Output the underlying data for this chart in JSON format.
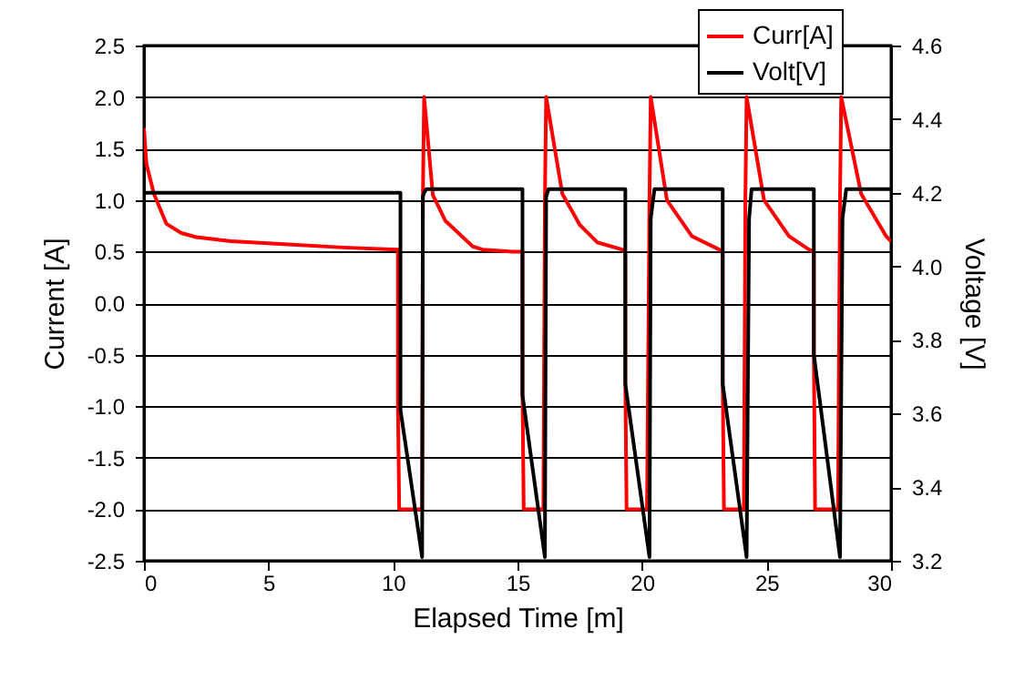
{
  "chart_data": {
    "type": "line",
    "xlabel": "Elapsed Time [m]",
    "ylabel": "Current [A]",
    "y2label": "Voltage [V]",
    "xlim": [
      0,
      30
    ],
    "xticks": [
      0,
      5,
      10,
      15,
      20,
      25,
      30
    ],
    "ylim": [
      -2.5,
      2.5
    ],
    "yticks": [
      {
        "value": -2.5,
        "label": "-2.5"
      },
      {
        "value": -2,
        "label": "-2.0"
      },
      {
        "value": -1.5,
        "label": "-1.5"
      },
      {
        "value": -1,
        "label": "-1.0"
      },
      {
        "value": -0.5,
        "label": "-0.5"
      },
      {
        "value": 0,
        "label": "0.0"
      },
      {
        "value": 0.5,
        "label": "0.5"
      },
      {
        "value": 1,
        "label": "1.0"
      },
      {
        "value": 1.5,
        "label": "1.5"
      },
      {
        "value": 2,
        "label": "2.0"
      },
      {
        "value": 2.5,
        "label": "2.5"
      }
    ],
    "y2lim": [
      3.2,
      4.6
    ],
    "y2ticks": [
      {
        "value": 3.2,
        "label": "3.2"
      },
      {
        "value": 3.4,
        "label": "3.4"
      },
      {
        "value": 3.6,
        "label": "3.6"
      },
      {
        "value": 3.8,
        "label": "3.8"
      },
      {
        "value": 4,
        "label": "4.0"
      },
      {
        "value": 4.2,
        "label": "4.2"
      },
      {
        "value": 4.4,
        "label": "4.4"
      },
      {
        "value": 4.6,
        "label": "4.6"
      }
    ],
    "grid": "y",
    "legend": "top right",
    "line_style": "solid",
    "series": [
      {
        "name": "Curr[A]",
        "color": "#ff0000",
        "x": [
          0,
          0.1,
          0.4,
          0.9,
          1.5,
          2.1,
          3.5,
          5.8,
          8,
          10.2,
          10.2,
          10.25,
          11.17,
          11.2,
          11.25,
          11.6,
          12.1,
          13.2,
          13.6,
          14.8,
          15.2,
          15.2,
          15.25,
          16.04,
          16.1,
          16.15,
          16.8,
          17.5,
          18.2,
          19.2,
          19.33,
          19.33,
          19.38,
          20.2,
          20.3,
          20.35,
          21,
          22,
          23.1,
          23.24,
          23.24,
          23.29,
          24.09,
          24.15,
          24.2,
          24.9,
          25.9,
          26.7,
          26.9,
          26.9,
          26.95,
          27.87,
          27.95,
          28,
          28.8,
          29.8,
          30
        ],
        "values": [
          1.7,
          1.35,
          1.06,
          0.77,
          0.68,
          0.64,
          0.6,
          0.57,
          0.54,
          0.52,
          -1,
          -2,
          -2,
          1,
          2,
          1.05,
          0.8,
          0.55,
          0.52,
          0.5,
          0.5,
          -0.88,
          -2,
          -2,
          1,
          2,
          1.06,
          0.76,
          0.59,
          0.52,
          0.5,
          -0.76,
          -2,
          -2,
          1,
          2,
          1,
          0.65,
          0.52,
          0.5,
          -0.74,
          -2,
          -2,
          1,
          2,
          1,
          0.65,
          0.52,
          0.5,
          -0.5,
          -2,
          -2,
          1,
          2,
          1.06,
          0.65,
          0.6
        ]
      },
      {
        "name": "Volt[V]",
        "color": "#000000",
        "axis": "y2",
        "x": [
          0,
          10.3,
          10.3,
          11.17,
          11.2,
          11.25,
          11.35,
          15.2,
          15.2,
          16.1,
          16.15,
          16.25,
          19.33,
          19.33,
          20.3,
          20.35,
          20.5,
          23.24,
          23.24,
          24.2,
          24.3,
          24.4,
          26.9,
          26.9,
          27.95,
          28.05,
          28.2,
          30
        ],
        "values": [
          4.2,
          4.2,
          3.61,
          3.21,
          4.19,
          4.2,
          4.21,
          4.21,
          3.65,
          3.21,
          4.19,
          4.21,
          4.21,
          3.68,
          3.21,
          4.13,
          4.21,
          4.21,
          3.68,
          3.21,
          4.13,
          4.21,
          4.21,
          3.76,
          3.21,
          4.13,
          4.21,
          4.21
        ]
      }
    ]
  }
}
